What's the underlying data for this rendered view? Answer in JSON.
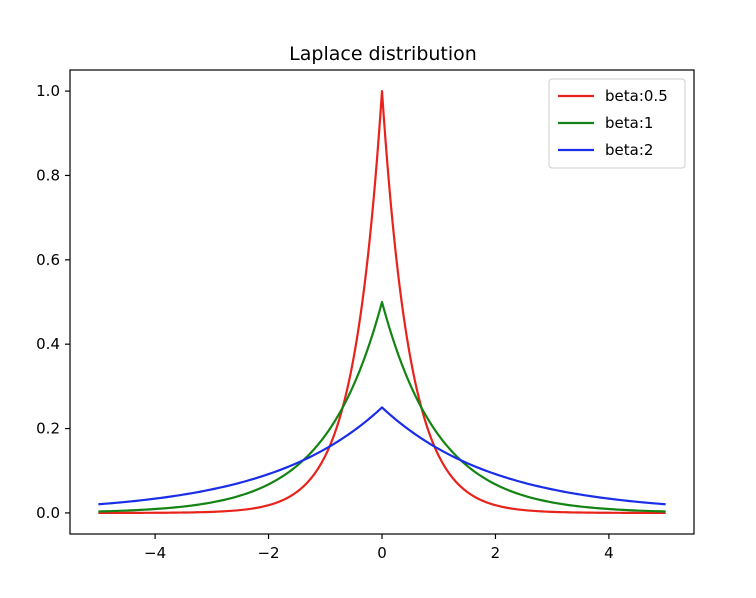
{
  "chart_data": {
    "type": "line",
    "title": "Laplace distribution",
    "xlabel": "",
    "ylabel": "",
    "xlim": [
      -5.5,
      5.5
    ],
    "ylim": [
      -0.05,
      1.05
    ],
    "x_ticks": [
      -4,
      -2,
      0,
      2,
      4
    ],
    "x_tick_labels": [
      "−4",
      "−2",
      "0",
      "2",
      "4"
    ],
    "y_ticks": [
      0.0,
      0.2,
      0.4,
      0.6,
      0.8,
      1.0
    ],
    "y_tick_labels": [
      "0.0",
      "0.2",
      "0.4",
      "0.6",
      "0.8",
      "1.0"
    ],
    "grid": false,
    "legend_position": "top-right",
    "x": [
      -5,
      -4.5,
      -4,
      -3.5,
      -3,
      -2.5,
      -2,
      -1.5,
      -1,
      -0.75,
      -0.5,
      -0.25,
      0,
      0.25,
      0.5,
      0.75,
      1,
      1.5,
      2,
      2.5,
      3,
      3.5,
      4,
      4.5,
      5
    ],
    "series": [
      {
        "name": "beta:0.5",
        "color": "#e8231b",
        "values": [
          0.0,
          0.0001,
          0.0003,
          0.0009,
          0.0025,
          0.0067,
          0.0183,
          0.0498,
          0.1353,
          0.2231,
          0.3679,
          0.6065,
          1.0,
          0.6065,
          0.3679,
          0.2231,
          0.1353,
          0.0498,
          0.0183,
          0.0067,
          0.0025,
          0.0009,
          0.0003,
          0.0001,
          0.0
        ]
      },
      {
        "name": "beta:1",
        "color": "#138413",
        "values": [
          0.0034,
          0.0056,
          0.0092,
          0.0151,
          0.0249,
          0.041,
          0.0677,
          0.1116,
          0.1839,
          0.2362,
          0.3033,
          0.3894,
          0.5,
          0.3894,
          0.3033,
          0.2362,
          0.1839,
          0.1116,
          0.0677,
          0.041,
          0.0249,
          0.0151,
          0.0092,
          0.0056,
          0.0034
        ]
      },
      {
        "name": "beta:2",
        "color": "#1a2ee8",
        "values": [
          0.0205,
          0.0263,
          0.0338,
          0.0434,
          0.0558,
          0.0716,
          0.092,
          0.1181,
          0.1516,
          0.1718,
          0.1947,
          0.2206,
          0.25,
          0.2206,
          0.1947,
          0.1718,
          0.1516,
          0.1181,
          0.092,
          0.0716,
          0.0558,
          0.0434,
          0.0338,
          0.0263,
          0.0205
        ]
      }
    ]
  }
}
